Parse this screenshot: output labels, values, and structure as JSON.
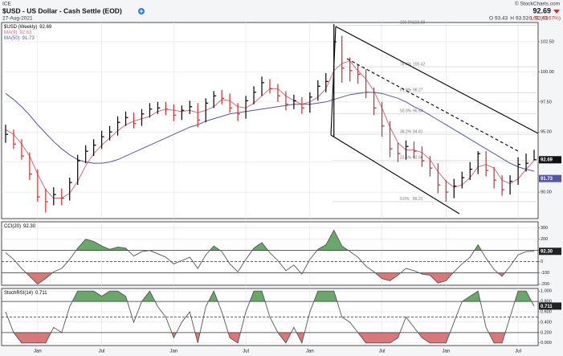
{
  "header": {
    "exchange": "ICE",
    "title": "$USD - US Dollar - Cash Settle (EOD)",
    "date": "27-Aug-2021",
    "copyright": "© StockCharts.com",
    "last": "92.69",
    "open_label": "O",
    "open": "93.43",
    "high_label": "H",
    "high": "93.52",
    "low_label": "L",
    "low": "92.63",
    "change": "-0.61 (-0.67%)"
  },
  "chart_data": [
    {
      "type": "hlc",
      "name": "$USD (Weekly)",
      "categories": [
        null,
        null,
        null,
        null,
        "Jan",
        null,
        null,
        null,
        null,
        null,
        null,
        null,
        "Jul",
        null,
        null,
        null,
        null,
        null,
        null,
        null,
        null,
        "Jan",
        null,
        null,
        null,
        null,
        null,
        null,
        null,
        null,
        "Jul",
        null,
        null,
        null,
        null,
        null,
        null,
        null,
        "Jan",
        null,
        null,
        null,
        null,
        null,
        null,
        null,
        null,
        "Jul",
        null,
        null,
        null,
        null,
        null,
        null,
        null,
        "Jan",
        null,
        null,
        null,
        null,
        null,
        null,
        null,
        null,
        "Jul",
        null,
        null
      ],
      "high": [
        95.6,
        95.2,
        94.4,
        93.3,
        91.9,
        90.3,
        90.4,
        90.3,
        91.2,
        93.1,
        93.9,
        94.4,
        95.1,
        95.5,
        96.3,
        96.7,
        96.6,
        96.9,
        97.4,
        97.5,
        97.5,
        97.3,
        97.2,
        97.6,
        97.4,
        97.8,
        98.4,
        98.5,
        98.2,
        97.4,
        98.0,
        98.8,
        99.6,
        99.4,
        99.0,
        98.4,
        98.1,
        97.9,
        98.3,
        99.3,
        99.9,
        103.96,
        103.0,
        101.2,
        100.6,
        100.2,
        98.7,
        97.5,
        95.9,
        94.1,
        94.3,
        94.2,
        93.8,
        93.0,
        92.4,
        91.0,
        91.1,
        91.7,
        92.5,
        93.4,
        93.4,
        92.1,
        91.4,
        91.4,
        92.9,
        93.2,
        93.52
      ],
      "low": [
        94.1,
        93.6,
        92.7,
        91.0,
        89.2,
        88.3,
        88.9,
        88.9,
        89.3,
        90.6,
        92.4,
        93.0,
        93.6,
        94.3,
        94.7,
        95.5,
        95.3,
        95.5,
        96.2,
        96.5,
        96.4,
        95.9,
        96.0,
        96.5,
        95.4,
        95.8,
        97.0,
        97.3,
        96.6,
        95.9,
        96.1,
        97.3,
        98.0,
        98.2,
        97.5,
        96.8,
        96.9,
        96.5,
        96.6,
        97.6,
        98.3,
        94.6,
        99.1,
        99.2,
        99.0,
        97.8,
        96.4,
        94.6,
        92.9,
        92.5,
        92.7,
        92.8,
        92.1,
        91.3,
        89.9,
        89.2,
        89.5,
        90.3,
        91.0,
        91.5,
        91.3,
        90.3,
        89.7,
        89.8,
        90.6,
        91.7,
        92.63
      ],
      "close": [
        94.8,
        94.0,
        93.0,
        91.5,
        89.6,
        89.2,
        89.8,
        89.5,
        90.8,
        92.6,
        93.4,
        93.9,
        94.6,
        95.0,
        95.8,
        96.2,
        95.7,
        96.5,
        96.9,
        97.0,
        96.9,
        96.4,
        96.8,
        97.1,
        96.0,
        97.4,
        98.0,
        97.8,
        97.0,
        96.5,
        97.6,
        98.3,
        99.1,
        98.6,
        98.0,
        97.3,
        97.6,
        97.0,
        97.9,
        98.8,
        99.2,
        102.5,
        100.3,
        100.1,
        99.8,
        98.3,
        97.0,
        95.5,
        93.6,
        93.2,
        93.8,
        93.4,
        92.6,
        92.0,
        90.6,
        90.0,
        90.5,
        91.2,
        91.9,
        93.2,
        91.8,
        91.0,
        90.2,
        90.9,
        92.3,
        92.4,
        92.69
      ],
      "up_color": "#000000",
      "down_color": "#d42a2a",
      "series": [
        {
          "name": "MA(9)",
          "color": "#e2667a",
          "values": [
            95.2,
            94.8,
            94.0,
            93.0,
            91.5,
            90.2,
            89.5,
            89.5,
            89.9,
            90.9,
            92.2,
            93.2,
            93.9,
            94.5,
            95.1,
            95.6,
            95.9,
            96.1,
            96.3,
            96.7,
            96.9,
            96.8,
            96.7,
            96.8,
            96.6,
            96.8,
            97.1,
            97.7,
            97.6,
            97.1,
            97.0,
            97.4,
            98.0,
            98.6,
            98.6,
            98.0,
            97.6,
            97.3,
            97.5,
            97.9,
            98.6,
            100.1,
            100.7,
            100.9,
            100.1,
            99.4,
            98.4,
            97.0,
            95.4,
            94.1,
            93.5,
            93.5,
            93.3,
            92.7,
            91.7,
            90.9,
            90.4,
            90.6,
            91.2,
            92.1,
            92.3,
            92.0,
            91.0,
            90.7,
            91.1,
            91.9,
            92.63
          ]
        },
        {
          "name": "MA(50)",
          "color": "#5656a8",
          "values": [
            98.2,
            97.7,
            97.1,
            96.4,
            95.6,
            94.9,
            94.2,
            93.6,
            93.1,
            92.7,
            92.5,
            92.4,
            92.4,
            92.5,
            92.7,
            93.0,
            93.3,
            93.6,
            93.9,
            94.2,
            94.5,
            94.8,
            95.1,
            95.4,
            95.6,
            95.9,
            96.1,
            96.3,
            96.5,
            96.6,
            96.7,
            96.8,
            96.9,
            97.0,
            97.1,
            97.2,
            97.3,
            97.3,
            97.3,
            97.4,
            97.5,
            97.7,
            97.9,
            98.1,
            98.2,
            98.3,
            98.3,
            98.2,
            98.0,
            97.8,
            97.5,
            97.1,
            96.8,
            96.4,
            96.0,
            95.6,
            95.2,
            94.8,
            94.4,
            94.0,
            93.6,
            93.2,
            92.8,
            92.4,
            92.1,
            91.9,
            91.73
          ]
        }
      ],
      "fib_levels": [
        {
          "label": "100.0%",
          "value": 103.88
        },
        {
          "label": "76.4%",
          "value": 100.42
        },
        {
          "label": "61.8%",
          "value": 98.27
        },
        {
          "label": "50.0%",
          "value": 96.54
        },
        {
          "label": "38.2%",
          "value": 94.81
        },
        {
          "label": "23.6%",
          "value": 92.66
        },
        {
          "label": "0.0%",
          "value": 89.21
        }
      ],
      "ylim": [
        87.8,
        104.1
      ],
      "yticks": [
        {
          "value": 90,
          "label": "90.00"
        },
        {
          "value": 92.5,
          "label": "92.50"
        },
        {
          "value": 95,
          "label": "95.00"
        },
        {
          "value": 97.5,
          "label": "97.50"
        },
        {
          "value": 100,
          "label": "100.00"
        },
        {
          "value": 102.5,
          "label": "102.50"
        }
      ],
      "grid": true
    },
    {
      "type": "line",
      "name": "CCI(20)",
      "last_label": "92.30",
      "color": "#555555",
      "values": [
        80,
        20,
        -60,
        -130,
        -200,
        -150,
        -90,
        -60,
        20,
        120,
        200,
        180,
        140,
        110,
        130,
        120,
        50,
        90,
        100,
        70,
        40,
        -20,
        10,
        40,
        -60,
        60,
        140,
        90,
        -20,
        -90,
        20,
        120,
        170,
        80,
        10,
        -80,
        -30,
        -110,
        20,
        110,
        150,
        280,
        140,
        90,
        40,
        -40,
        -90,
        -150,
        -170,
        -120,
        -60,
        -80,
        -110,
        -120,
        -190,
        -170,
        -90,
        -20,
        40,
        150,
        30,
        -70,
        -130,
        -40,
        60,
        90,
        92.3
      ],
      "levels": [
        -100,
        0,
        100
      ],
      "upper_fill": "#6aa86a",
      "lower_fill": "#d9787a",
      "ylim": [
        -210,
        355
      ],
      "yticks": [
        -200,
        -100,
        0,
        100,
        200,
        300
      ],
      "grid": true
    },
    {
      "type": "line",
      "name": "StochRSI(14)",
      "color": "#555555",
      "values": [
        0.6,
        0.2,
        0,
        0,
        0,
        0,
        0.3,
        0.2,
        0.7,
        1,
        1,
        1,
        0.9,
        1,
        1,
        0.9,
        0.4,
        0.8,
        1,
        0.7,
        0.5,
        0.1,
        0.4,
        0.6,
        0,
        0.7,
        1,
        0.6,
        0.1,
        0,
        0.6,
        1,
        1,
        0.5,
        0.2,
        0,
        0.3,
        0,
        0.6,
        1,
        1,
        1,
        0.5,
        0.4,
        0.2,
        0,
        0,
        0,
        0,
        0.1,
        0.5,
        0.3,
        0.1,
        0,
        0,
        0,
        0.4,
        0.8,
        0.9,
        1,
        0.3,
        0,
        0,
        0.5,
        1,
        1,
        0.711
      ],
      "levels": [
        0.2,
        0.5,
        0.8
      ],
      "upper_fill": "#6aa86a",
      "lower_fill": "#d9787a",
      "ylim": [
        -0.05,
        1.05
      ],
      "yticks": [
        {
          "value": 0,
          "label": "0.000"
        },
        {
          "value": 0.2,
          "label": "0.200"
        },
        {
          "value": 0.4,
          "label": "0.400"
        },
        {
          "value": 0.6,
          "label": "0.600"
        },
        {
          "value": 0.8,
          "label": "0.800"
        },
        {
          "value": 1,
          "label": "1.000"
        }
      ],
      "grid": true
    }
  ]
}
